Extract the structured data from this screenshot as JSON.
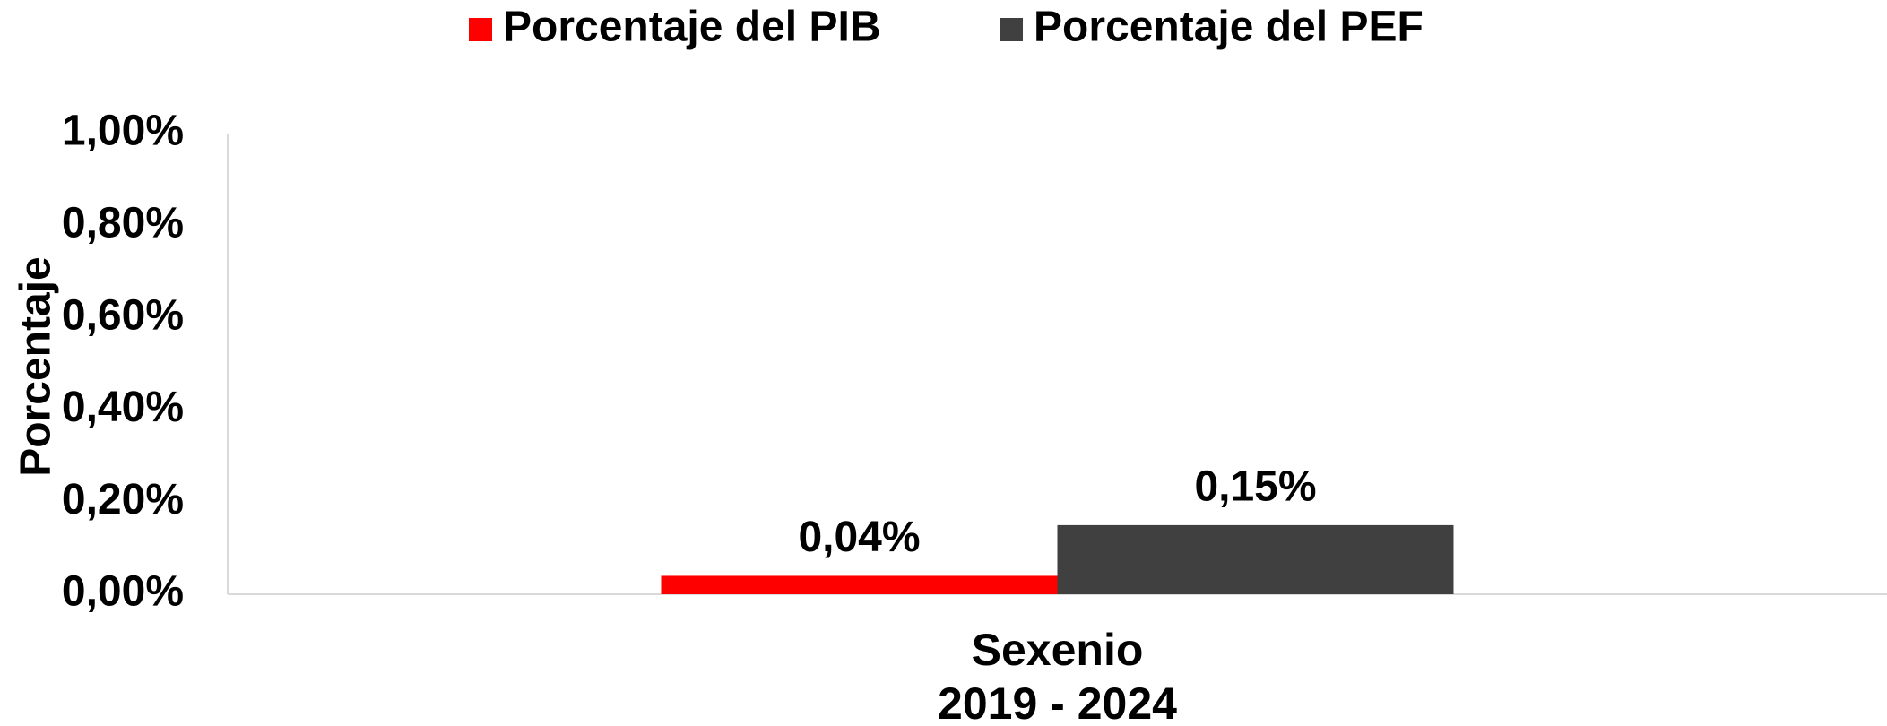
{
  "chart_data": {
    "type": "bar",
    "categories": [
      [
        "Sexenio",
        "2019 - 2024"
      ]
    ],
    "series": [
      {
        "name": "Porcentaje del PIB",
        "color": "#ff0000",
        "values": [
          0.04
        ],
        "value_labels": [
          "0,04%"
        ]
      },
      {
        "name": "Porcentaje del PEF",
        "color": "#404040",
        "values": [
          0.15
        ],
        "value_labels": [
          "0,15%"
        ]
      }
    ],
    "y_label": "Porcentaje",
    "ylim": [
      0,
      1
    ],
    "yticks": [
      {
        "value": 0,
        "label": "0,00%"
      },
      {
        "value": 0.2,
        "label": "0,20%"
      },
      {
        "value": 0.4,
        "label": "0,40%"
      },
      {
        "value": 0.6,
        "label": "0,60%"
      },
      {
        "value": 0.8,
        "label": "0,80%"
      },
      {
        "value": 1,
        "label": "1,00%"
      }
    ],
    "grid": false,
    "legend": "top"
  }
}
